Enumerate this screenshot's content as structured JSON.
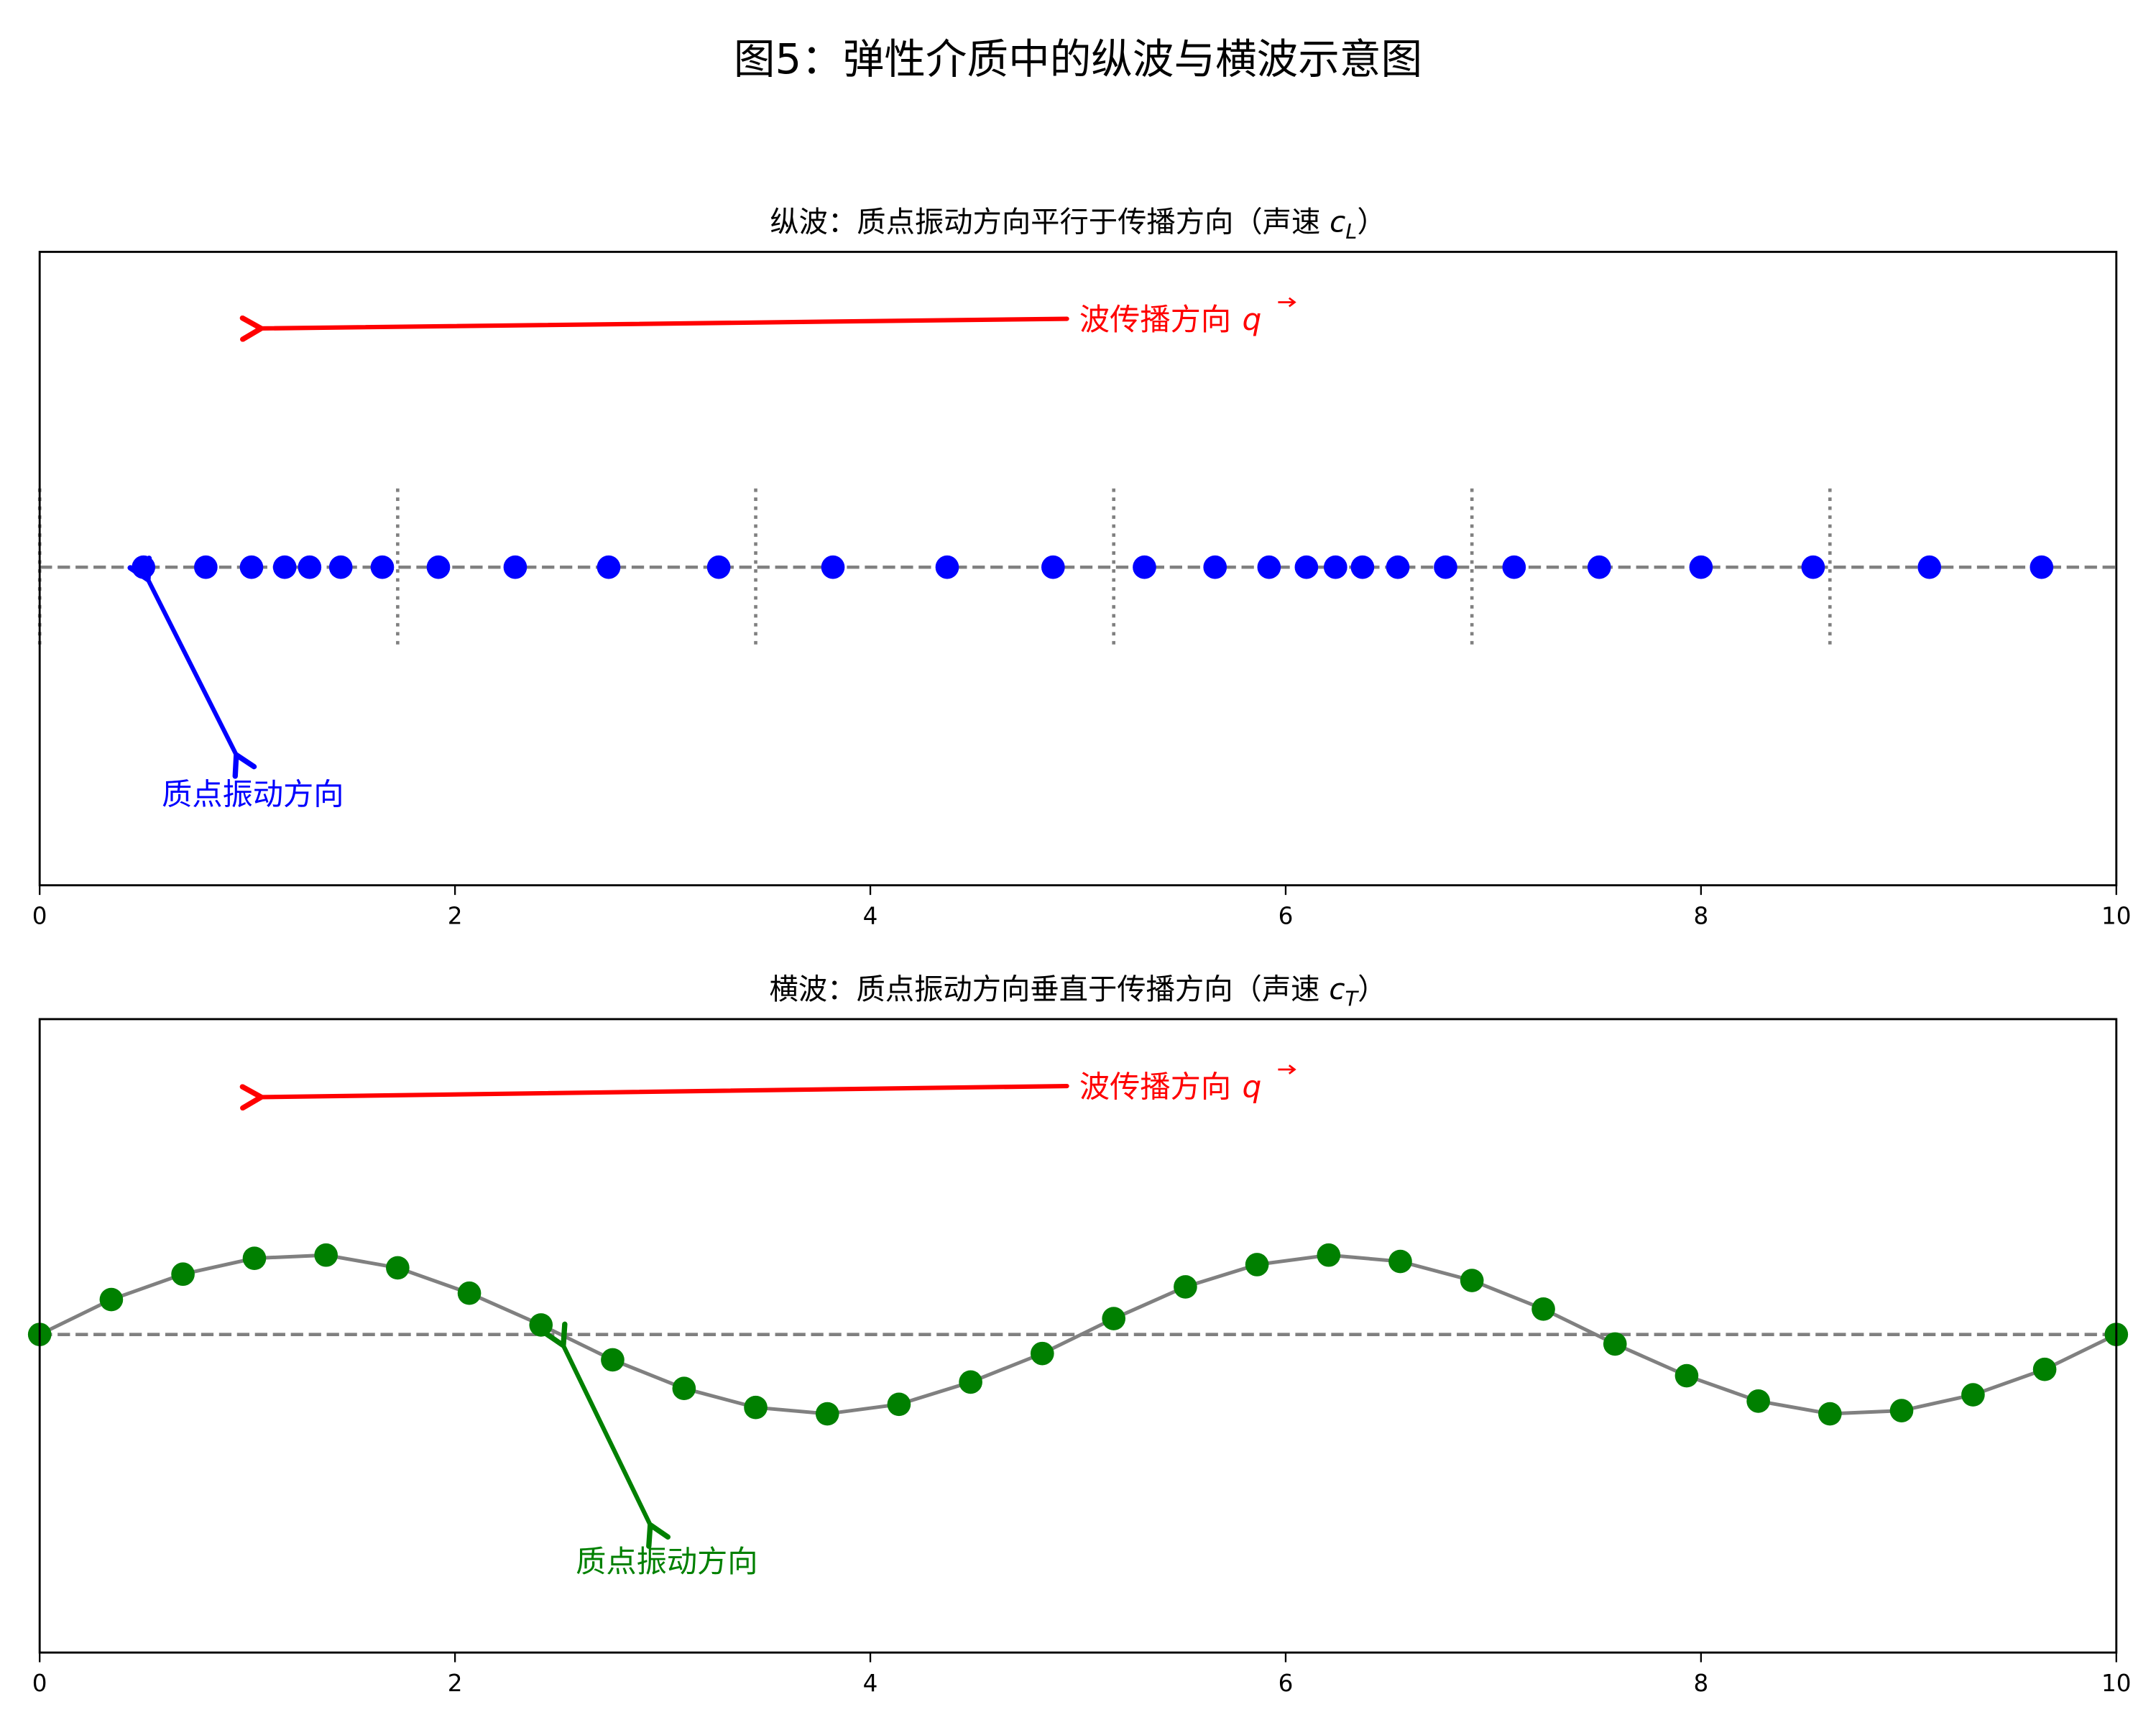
{
  "figure": {
    "title": "图5：弹性介质中的纵波与横波示意图"
  },
  "chart_data": [
    {
      "type": "scatter",
      "panel": "top",
      "title": "纵波：质点振动方向平行于传播方向（声速 c_L）",
      "title_text": "纵波：质点振动方向平行于传播方向（声速 ",
      "title_symbol": "c",
      "title_subscript": "L",
      "title_close": "）",
      "xlabel": "",
      "ylabel": "",
      "xlim": [
        0,
        10
      ],
      "ylim": [
        -1,
        1
      ],
      "xticks": [
        0,
        2,
        4,
        6,
        8,
        10
      ],
      "yticks": [],
      "grid": false,
      "series": [
        {
          "name": "particles",
          "color": "#0000ff",
          "marker": "circle",
          "x": [
            0.5,
            0.8,
            1.02,
            1.18,
            1.3,
            1.45,
            1.65,
            1.92,
            2.29,
            2.74,
            3.27,
            3.82,
            4.37,
            4.88,
            5.32,
            5.66,
            5.92,
            6.1,
            6.24,
            6.37,
            6.54,
            6.77,
            7.1,
            7.51,
            8.0,
            8.54,
            9.1,
            9.64
          ],
          "y": [
            0,
            0,
            0,
            0,
            0,
            0,
            0,
            0,
            0,
            0,
            0,
            0,
            0,
            0,
            0,
            0,
            0,
            0,
            0,
            0,
            0,
            0,
            0,
            0,
            0,
            0,
            0,
            0
          ]
        }
      ],
      "reference_lines": {
        "horizontal_dashed_y": 0,
        "vertical_dotted_x": [
          0,
          1.724,
          3.448,
          5.172,
          6.897,
          8.621
        ],
        "color": "#808080"
      },
      "annotations": [
        {
          "text": "波传播方向",
          "symbol": "q",
          "vector": true,
          "color": "#ff0000",
          "arrow_from": [
            4.95,
            0.72
          ],
          "arrow_to": [
            1.05,
            0.69
          ]
        },
        {
          "text": "质点振动方向",
          "color": "#0000ff",
          "arrow": "double",
          "arrow_from": [
            0.52,
            -0.03
          ],
          "arrow_to": [
            0.96,
            -0.6
          ]
        }
      ]
    },
    {
      "type": "line",
      "panel": "bottom",
      "title": "横波：质点振动方向垂直于传播方向（声速 c_T）",
      "title_text": "横波：质点振动方向垂直于传播方向（声速 ",
      "title_symbol": "c",
      "title_subscript": "T",
      "title_close": "）",
      "xlabel": "",
      "ylabel": "",
      "xlim": [
        0,
        10
      ],
      "ylim": [
        -1,
        1
      ],
      "xticks": [
        0,
        2,
        4,
        6,
        8,
        10
      ],
      "yticks": [],
      "grid": false,
      "series": [
        {
          "name": "transverse displacement",
          "line_color": "#808080",
          "marker_color": "#008000",
          "marker": "circle",
          "x": [
            0.0,
            0.345,
            0.69,
            1.034,
            1.379,
            1.724,
            2.069,
            2.414,
            2.759,
            3.103,
            3.448,
            3.793,
            4.138,
            4.483,
            4.828,
            5.172,
            5.517,
            5.862,
            6.207,
            6.552,
            6.897,
            7.241,
            7.586,
            7.931,
            8.276,
            8.621,
            8.966,
            9.31,
            9.655,
            10.0
          ],
          "y": [
            0.0,
            0.11,
            0.19,
            0.24,
            0.25,
            0.21,
            0.13,
            0.03,
            -0.08,
            -0.17,
            -0.23,
            -0.25,
            -0.22,
            -0.15,
            -0.06,
            0.05,
            0.15,
            0.22,
            0.25,
            0.23,
            0.17,
            0.08,
            -0.03,
            -0.13,
            -0.21,
            -0.25,
            -0.24,
            -0.19,
            -0.11,
            0.0
          ]
        }
      ],
      "reference_lines": {
        "horizontal_dashed_y": 0,
        "color": "#808080"
      },
      "annotations": [
        {
          "text": "波传播方向",
          "symbol": "q",
          "vector": true,
          "color": "#ff0000",
          "arrow_from": [
            4.95,
            0.78
          ],
          "arrow_to": [
            1.05,
            0.75
          ]
        },
        {
          "text": "质点振动方向",
          "color": "#008000",
          "arrow": "single",
          "arrow_from": [
            2.52,
            -0.03
          ],
          "arrow_to": [
            2.95,
            -0.61
          ]
        }
      ]
    }
  ]
}
